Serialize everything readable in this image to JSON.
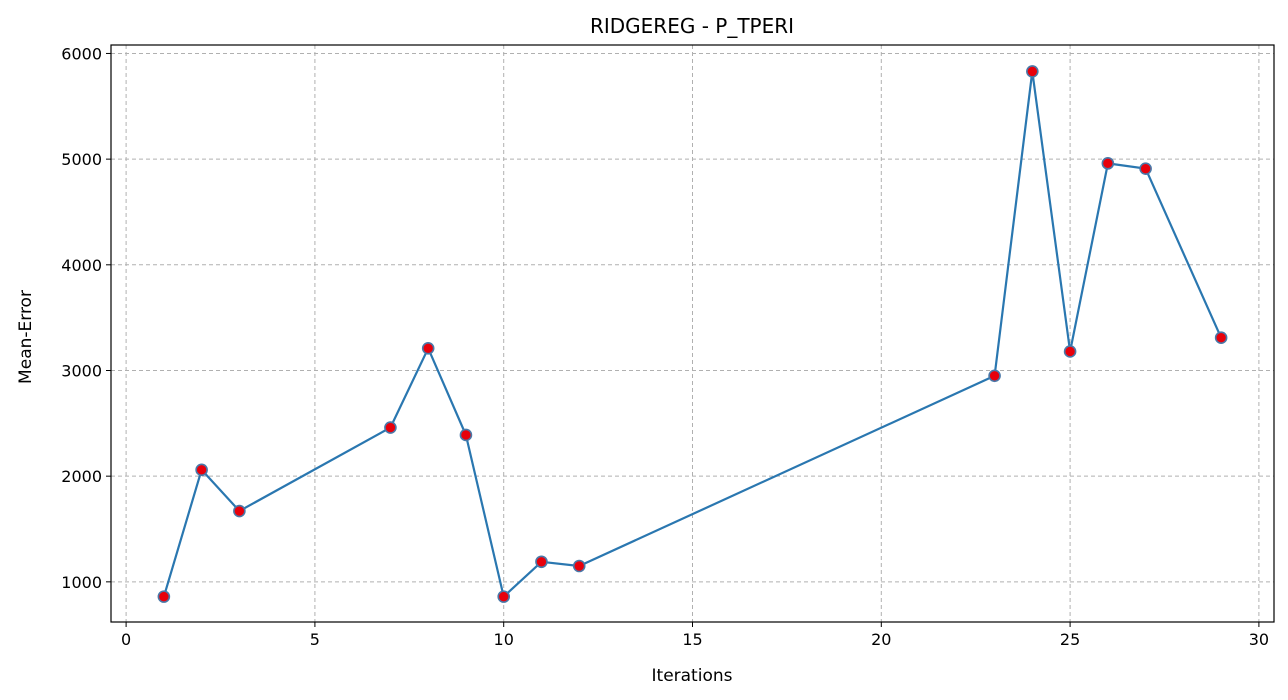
{
  "chart_data": {
    "type": "line",
    "title": "RIDGEREG - P_TPERI",
    "xlabel": "Iterations",
    "ylabel": "Mean-Error",
    "xlim": [
      -0.4,
      30.4
    ],
    "ylim": [
      620,
      6080
    ],
    "xticks": [
      0,
      5,
      10,
      15,
      20,
      25,
      30
    ],
    "yticks": [
      1000,
      2000,
      3000,
      4000,
      5000,
      6000
    ],
    "grid": true,
    "series": [
      {
        "x": [
          1,
          2,
          3,
          7,
          8,
          9,
          10,
          11,
          12,
          23,
          24,
          25,
          26,
          27,
          29
        ],
        "y": [
          860,
          2060,
          1670,
          2460,
          3210,
          2390,
          860,
          1190,
          1150,
          2950,
          5830,
          3180,
          4960,
          4910,
          3310
        ]
      }
    ],
    "colors": {
      "line": "#2a77b0",
      "marker_fill": "#e8000b",
      "marker_edge": "#4a78a8"
    }
  }
}
